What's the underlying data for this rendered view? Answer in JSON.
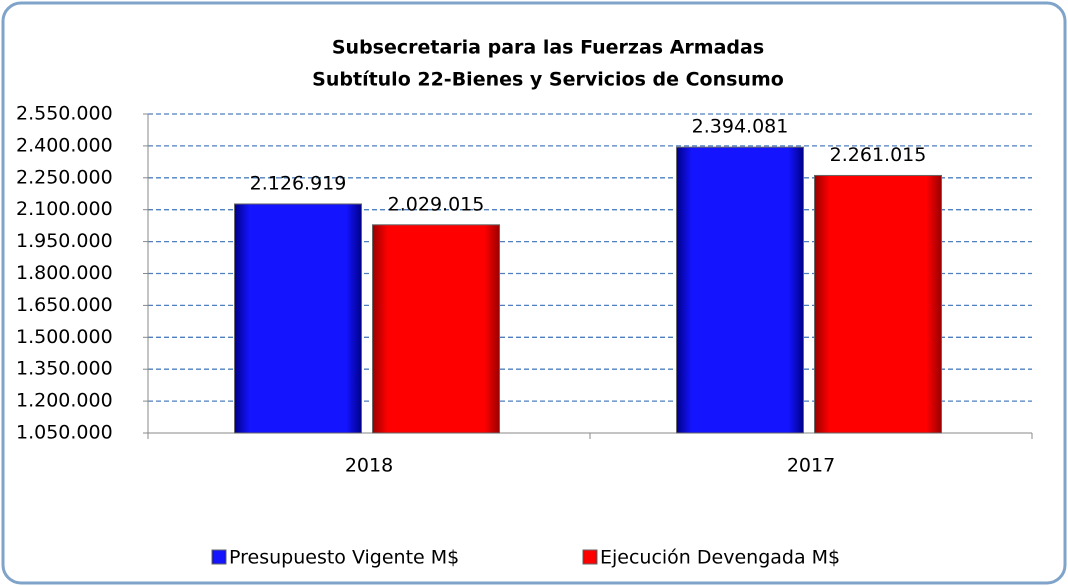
{
  "chart_data": {
    "type": "bar",
    "title": [
      "Subsecretaria para las Fuerzas Armadas",
      "Subtítulo 22-Bienes y Servicios de Consumo"
    ],
    "categories": [
      "2018",
      "2017"
    ],
    "series": [
      {
        "name": "Presupuesto Vigente M$",
        "color": "#1414ff",
        "values": [
          2126919,
          2394081
        ],
        "value_labels": [
          "2.126.919",
          "2.394.081"
        ]
      },
      {
        "name": "Ejecución Devengada M$",
        "color": "#ff0000",
        "values": [
          2029015,
          2261015
        ],
        "value_labels": [
          "2.029.015",
          "2.261.015"
        ]
      }
    ],
    "ylim": [
      1050000,
      2550000
    ],
    "yticks": [
      {
        "value": 1050000,
        "label": "1.050.000"
      },
      {
        "value": 1200000,
        "label": "1.200.000"
      },
      {
        "value": 1350000,
        "label": "1.350.000"
      },
      {
        "value": 1500000,
        "label": "1.500.000"
      },
      {
        "value": 1650000,
        "label": "1.650.000"
      },
      {
        "value": 1800000,
        "label": "1.800.000"
      },
      {
        "value": 1950000,
        "label": "1.950.000"
      },
      {
        "value": 2100000,
        "label": "2.100.000"
      },
      {
        "value": 2250000,
        "label": "2.250.000"
      },
      {
        "value": 2400000,
        "label": "2.400.000"
      },
      {
        "value": 2550000,
        "label": "2.550.000"
      }
    ],
    "grid": true,
    "legend": "bottom"
  }
}
